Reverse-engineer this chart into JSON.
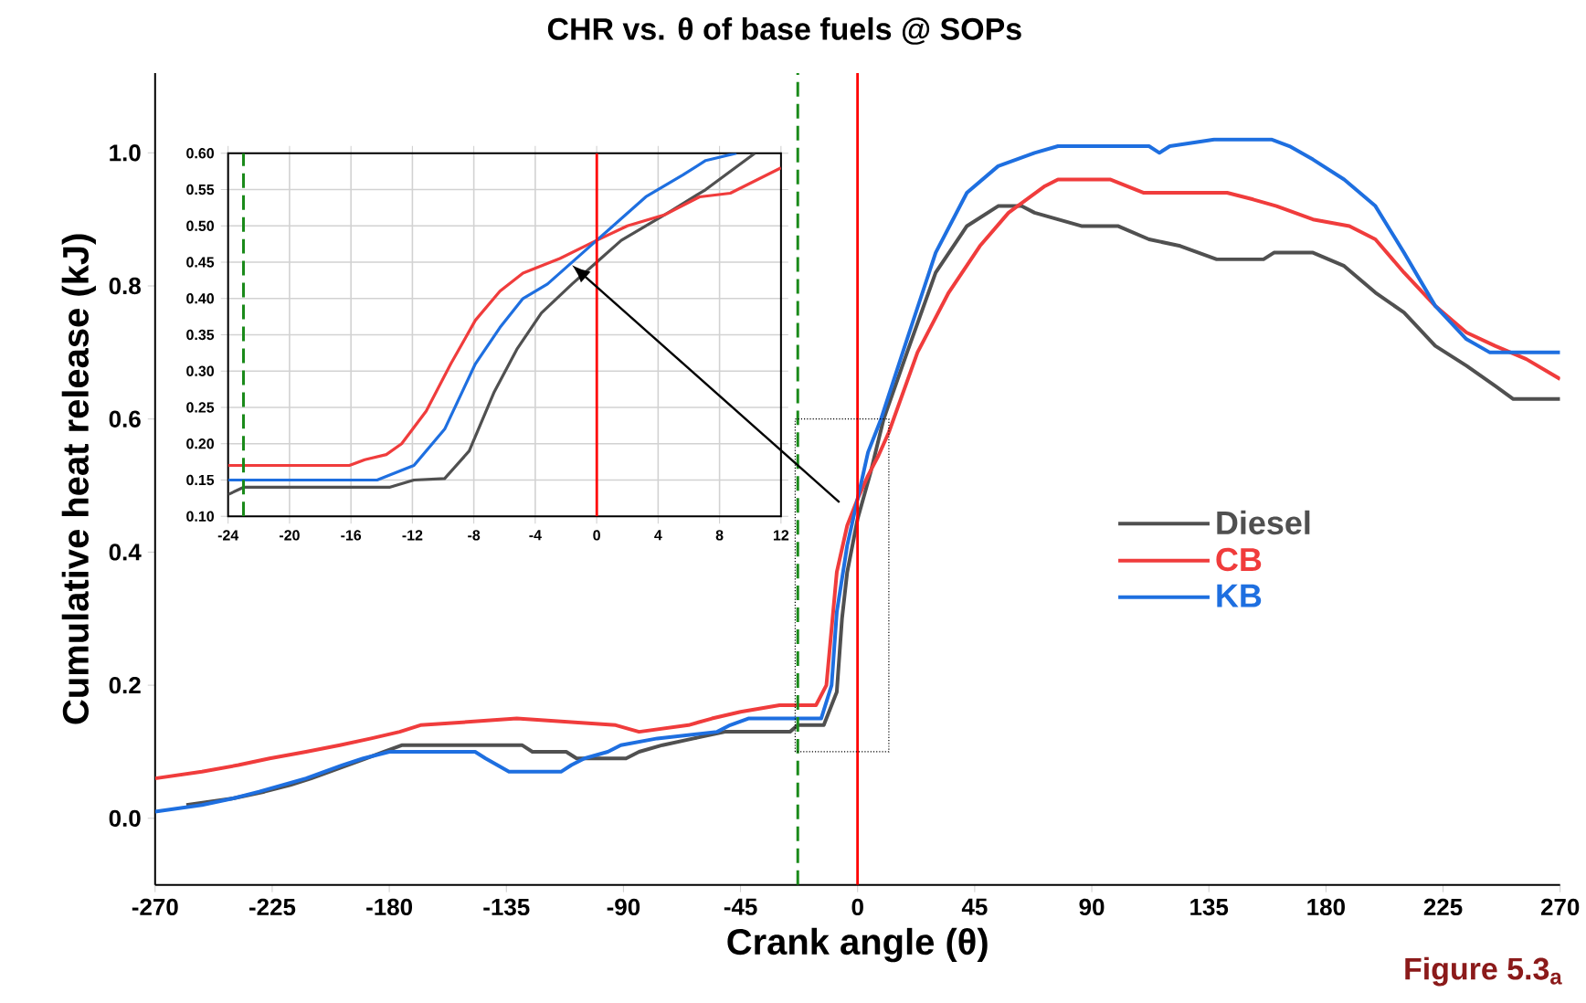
{
  "chart_data": [
    {
      "type": "line",
      "title": "CHR vs. θ of base fuels @ SOPs",
      "xlabel": "Crank angle (θ)",
      "ylabel": "Cumulative heat release (kJ)",
      "annotations": [
        "Figure 5.3$_{a}$"
      ],
      "xlim": [
        -270,
        270
      ],
      "ylim": [
        -0.1,
        1.12
      ],
      "xticks": [
        -270,
        -225,
        -180,
        -135,
        -90,
        -45,
        0,
        45,
        90,
        135,
        180,
        225,
        270
      ],
      "yticks": [
        {
          "value": 0,
          "label": "0.0"
        },
        {
          "value": 0.2,
          "label": "0.2"
        },
        {
          "value": 0.4,
          "label": "0.4"
        },
        {
          "value": 0.6,
          "label": "0.6"
        },
        {
          "value": 0.8,
          "label": "0.8"
        },
        {
          "value": 1.0,
          "label": "1.0"
        }
      ],
      "legend": "right",
      "ref_lines": [
        {
          "axis": "x",
          "value": -23,
          "color": "#1a8a1a",
          "line_style": "dashed"
        },
        {
          "axis": "x",
          "value": 0,
          "color": "#ff0000",
          "line_style": "solid"
        }
      ],
      "series": [
        {
          "name": "Diesel",
          "color": "#505050",
          "x": [
            -258,
            -240,
            -228,
            -218,
            -210,
            -203,
            -196,
            -189,
            -182,
            -175,
            -129,
            -125,
            -112,
            -108,
            -89,
            -84,
            -75,
            -63,
            -51,
            -26,
            -23,
            -13,
            -8,
            -6,
            -4,
            0,
            5,
            10,
            19,
            30,
            42,
            54,
            63,
            68,
            77,
            86,
            100,
            112,
            124,
            138,
            156,
            160,
            175,
            187,
            199,
            210,
            222,
            234,
            245,
            252,
            270
          ],
          "values": [
            0.02,
            0.03,
            0.04,
            0.05,
            0.06,
            0.07,
            0.08,
            0.09,
            0.1,
            0.11,
            0.11,
            0.1,
            0.1,
            0.09,
            0.09,
            0.1,
            0.11,
            0.12,
            0.13,
            0.13,
            0.14,
            0.14,
            0.19,
            0.3,
            0.37,
            0.45,
            0.52,
            0.6,
            0.7,
            0.82,
            0.89,
            0.92,
            0.92,
            0.91,
            0.9,
            0.89,
            0.89,
            0.87,
            0.86,
            0.84,
            0.84,
            0.85,
            0.85,
            0.83,
            0.79,
            0.76,
            0.71,
            0.68,
            0.65,
            0.63,
            0.63
          ]
        },
        {
          "name": "CB",
          "color": "#f03c3c",
          "x": [
            -270,
            -252,
            -238,
            -226,
            -212,
            -199,
            -187,
            -176,
            -168,
            -131,
            -93,
            -84,
            -65,
            -56,
            -45,
            -30,
            -16,
            -12,
            -8,
            -4,
            0,
            4,
            8,
            12,
            23,
            35,
            47,
            58,
            72,
            77,
            97,
            110,
            142,
            152,
            161,
            175,
            189,
            199,
            210,
            222,
            234,
            245,
            257,
            270
          ],
          "values": [
            0.06,
            0.07,
            0.08,
            0.09,
            0.1,
            0.11,
            0.12,
            0.13,
            0.14,
            0.15,
            0.14,
            0.13,
            0.14,
            0.15,
            0.16,
            0.17,
            0.17,
            0.2,
            0.37,
            0.44,
            0.48,
            0.515,
            0.545,
            0.58,
            0.7,
            0.79,
            0.86,
            0.91,
            0.95,
            0.96,
            0.96,
            0.94,
            0.94,
            0.93,
            0.92,
            0.9,
            0.89,
            0.87,
            0.82,
            0.77,
            0.73,
            0.71,
            0.69,
            0.66
          ]
        },
        {
          "name": "KB",
          "color": "#1e6fe0",
          "x": [
            -270,
            -252,
            -240,
            -230,
            -221,
            -212,
            -205,
            -198,
            -190,
            -180,
            -147,
            -143,
            -134,
            -114,
            -110,
            -105,
            -96,
            -91,
            -77,
            -54,
            -49,
            -42,
            -14,
            -10,
            -8,
            -4,
            0,
            4,
            9,
            19,
            30,
            42,
            54,
            68,
            77,
            112,
            116,
            120,
            137,
            159,
            166,
            175,
            187,
            199,
            210,
            222,
            234,
            243,
            270
          ],
          "values": [
            0.01,
            0.02,
            0.03,
            0.04,
            0.05,
            0.06,
            0.07,
            0.08,
            0.09,
            0.1,
            0.1,
            0.09,
            0.07,
            0.07,
            0.08,
            0.09,
            0.1,
            0.11,
            0.12,
            0.13,
            0.14,
            0.15,
            0.15,
            0.2,
            0.31,
            0.41,
            0.48,
            0.55,
            0.6,
            0.72,
            0.85,
            0.94,
            0.98,
            1.0,
            1.01,
            1.01,
            1.0,
            1.01,
            1.02,
            1.02,
            1.01,
            0.99,
            0.96,
            0.92,
            0.85,
            0.77,
            0.72,
            0.7,
            0.7
          ]
        }
      ]
    },
    {
      "type": "line",
      "xlim": [
        -24,
        12
      ],
      "ylim": [
        0.1,
        0.6
      ],
      "xticks": [
        -24,
        -20,
        -16,
        -12,
        -8,
        -4,
        0,
        4,
        8,
        12
      ],
      "yticks": [
        {
          "value": 0.1,
          "label": "0.10"
        },
        {
          "value": 0.15,
          "label": "0.15"
        },
        {
          "value": 0.2,
          "label": "0.20"
        },
        {
          "value": 0.25,
          "label": "0.25"
        },
        {
          "value": 0.3,
          "label": "0.30"
        },
        {
          "value": 0.35,
          "label": "0.35"
        },
        {
          "value": 0.4,
          "label": "0.40"
        },
        {
          "value": 0.45,
          "label": "0.45"
        },
        {
          "value": 0.5,
          "label": "0.50"
        },
        {
          "value": 0.55,
          "label": "0.55"
        },
        {
          "value": 0.6,
          "label": "0.60"
        }
      ],
      "grid": true,
      "ref_lines": [
        {
          "axis": "x",
          "value": -23,
          "color": "#1a8a1a",
          "line_style": "dashed"
        },
        {
          "axis": "x",
          "value": 0,
          "color": "#ff0000",
          "line_style": "solid"
        }
      ],
      "series": [
        {
          "color": "#505050",
          "x": [
            -24,
            -23,
            -13.5,
            -11.9,
            -9.9,
            -8.3,
            -6.7,
            -5.2,
            -3.6,
            -1.6,
            0,
            1.6,
            4.8,
            7.1,
            10.3
          ],
          "values": [
            0.13,
            0.14,
            0.14,
            0.15,
            0.152,
            0.19,
            0.27,
            0.33,
            0.38,
            0.42,
            0.45,
            0.48,
            0.52,
            0.55,
            0.6
          ]
        },
        {
          "color": "#f03c3c",
          "x": [
            -24,
            -16.1,
            -15.1,
            -13.7,
            -12.7,
            -11.1,
            -9.5,
            -7.9,
            -6.3,
            -4.8,
            -2.4,
            0,
            2,
            4.4,
            6.7,
            8.7,
            12
          ],
          "values": [
            0.17,
            0.17,
            0.178,
            0.185,
            0.2,
            0.245,
            0.31,
            0.37,
            0.41,
            0.435,
            0.455,
            0.48,
            0.5,
            0.515,
            0.54,
            0.545,
            0.58
          ]
        },
        {
          "color": "#1e6fe0",
          "x": [
            -24,
            -14.3,
            -11.9,
            -9.9,
            -7.9,
            -6.3,
            -4.8,
            -3.2,
            0,
            3.2,
            5.6,
            7.1,
            9.1
          ],
          "values": [
            0.15,
            0.15,
            0.17,
            0.22,
            0.31,
            0.36,
            0.4,
            0.42,
            0.48,
            0.54,
            0.57,
            0.59,
            0.6
          ]
        }
      ]
    }
  ]
}
